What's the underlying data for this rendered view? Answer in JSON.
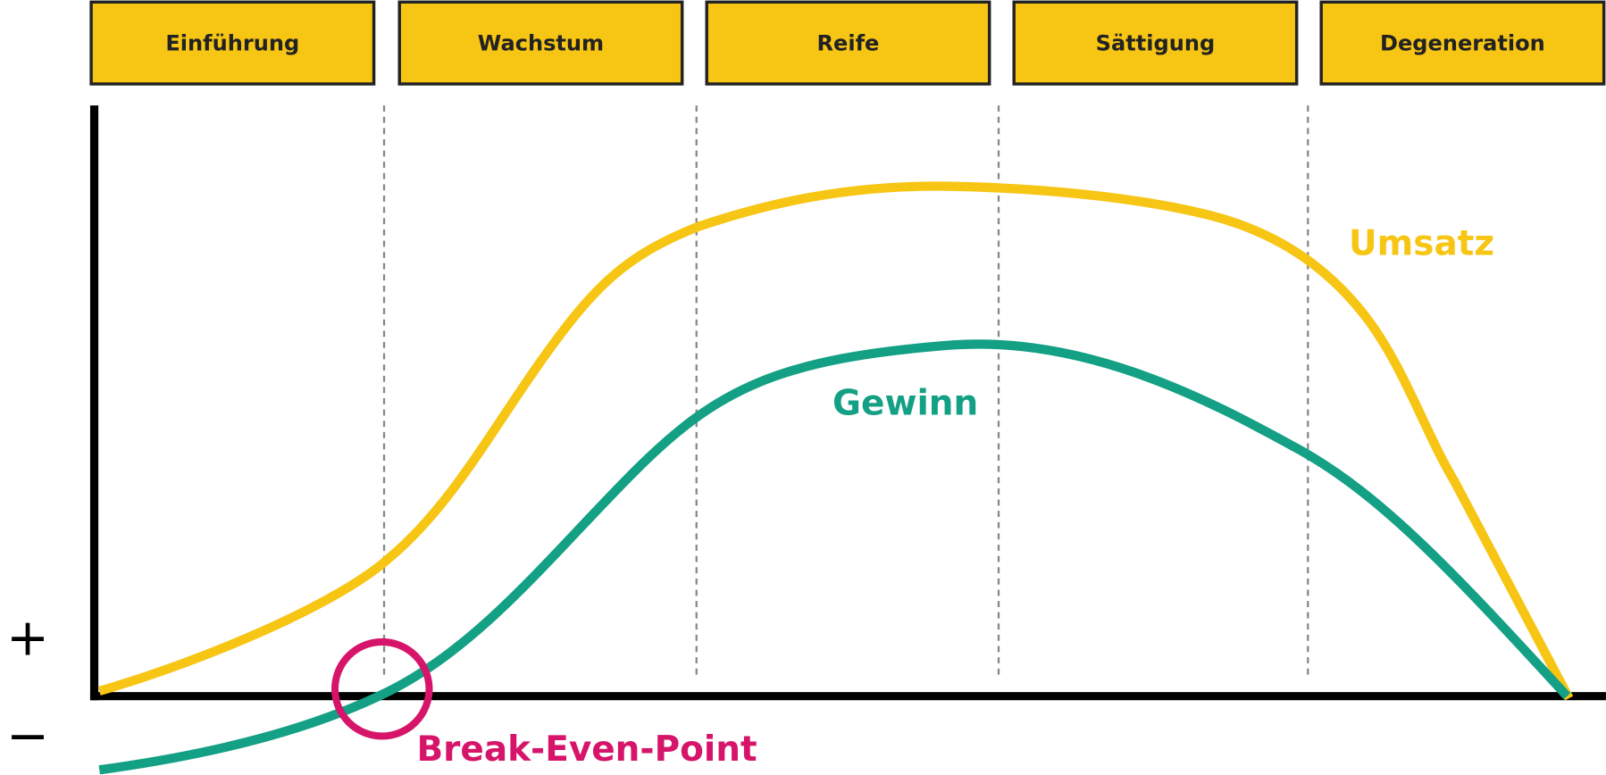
{
  "phases": [
    "Einführung",
    "Wachstum",
    "Reife",
    "Sättigung",
    "Degeneration"
  ],
  "curves": {
    "revenue": "Umsatz",
    "profit": "Gewinn"
  },
  "break_even": "Break-Even-Point",
  "axis": {
    "plus": "+",
    "minus": "−"
  }
}
